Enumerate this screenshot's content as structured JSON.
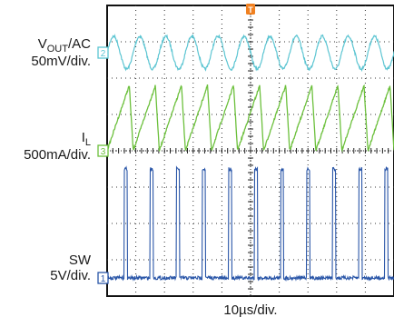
{
  "chart_data": {
    "type": "line",
    "grid": true,
    "x_axis": {
      "divisions": 10,
      "scale_label": "10µs/div."
    },
    "channels": [
      {
        "id": "2",
        "label_main": "V",
        "label_sub": "OUT",
        "label_suffix": "/AC",
        "scale": "50mV/div.",
        "color": "#5cc5d2",
        "waveform": "sinusoidal ripple",
        "cycles_on_screen": 11,
        "peak_to_peak_div": 0.9
      },
      {
        "id": "3",
        "label_main": "I",
        "label_sub": "L",
        "scale": "500mA/div.",
        "color": "#6cc03c",
        "waveform": "sawtooth",
        "cycles_on_screen": 11,
        "peak_to_peak_div": 1.8
      },
      {
        "id": "1",
        "label_main": "SW",
        "scale": "5V/div.",
        "color": "#2a56a8",
        "waveform": "pulse",
        "cycles_on_screen": 11,
        "high_level_div": 3.0,
        "duty_cycle": 0.12
      }
    ],
    "trigger_marker": "T"
  }
}
